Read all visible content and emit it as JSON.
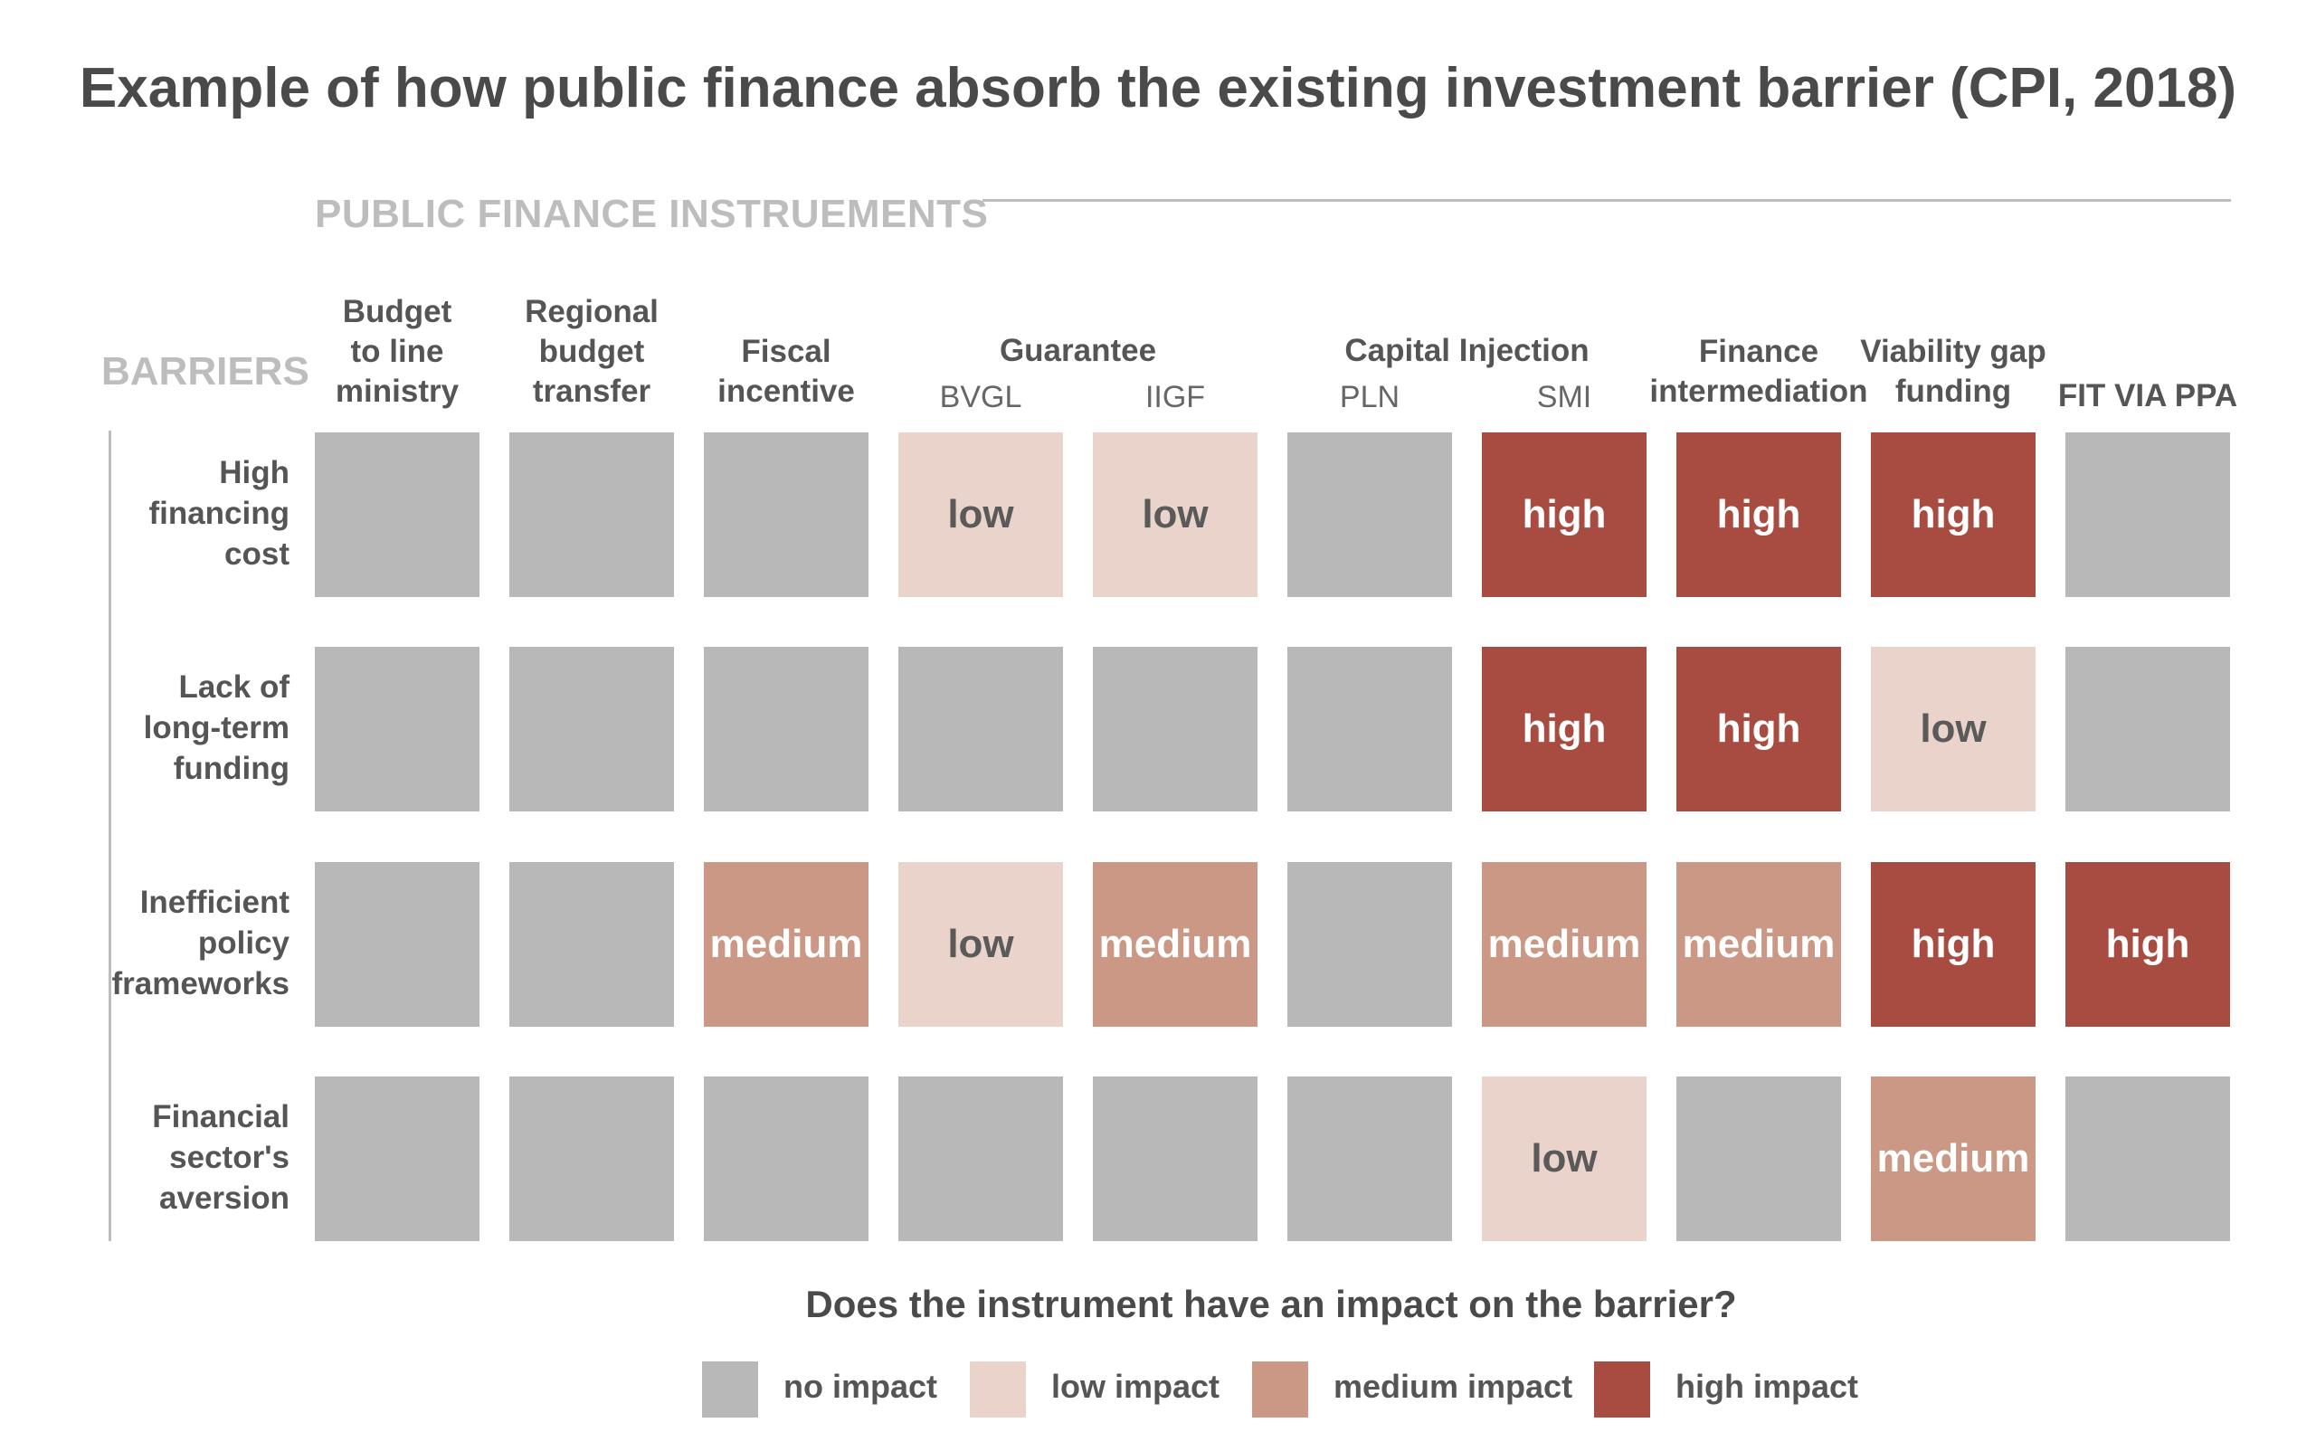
{
  "title": "Example of how public finance absorb the existing investment barrier (CPI, 2018)",
  "instruments_label": "PUBLIC FINANCE INSTRUEMENTS",
  "barriers_label": "BARRIERS",
  "question": "Does the instrument have an impact on the barrier?",
  "colors": {
    "none": "#b8b8b8",
    "low": "#ead3cb",
    "medium": "#cc9886",
    "high": "#a84c42",
    "text_dark": "#5a5a5a",
    "text_light": "#ffffff"
  },
  "groups": [
    {
      "label": "Budget\nto line\nministry",
      "cols": [
        0
      ]
    },
    {
      "label": "Regional\nbudget\ntransfer",
      "cols": [
        1
      ]
    },
    {
      "label": "Fiscal\nincentive",
      "cols": [
        2
      ]
    },
    {
      "label": "Guarantee",
      "cols": [
        3,
        4
      ]
    },
    {
      "label": "Capital Injection",
      "cols": [
        5,
        6
      ]
    },
    {
      "label": "Finance\nintermediation",
      "cols": [
        7
      ]
    },
    {
      "label": "Viability gap\nfunding",
      "cols": [
        8
      ]
    },
    {
      "label": "FIT VIA PPA",
      "cols": [
        9
      ]
    }
  ],
  "subcolumns": [
    "",
    "",
    "",
    "BVGL",
    "IIGF",
    "PLN",
    "SMI",
    "",
    "",
    ""
  ],
  "chart_data": {
    "type": "heatmap",
    "rows": [
      "High\nfinancing\ncost",
      "Lack of\nlong-term\nfunding",
      "Inefficient\npolicy\nframeworks",
      "Financial\nsector's\naversion"
    ],
    "columns": [
      "Budget to line ministry",
      "Regional budget transfer",
      "Fiscal incentive",
      "BVGL",
      "IIGF",
      "PLN",
      "SMI",
      "Finance intermediation",
      "Viability gap funding",
      "FIT VIA PPA"
    ],
    "values": [
      [
        "",
        "",
        "",
        "low",
        "low",
        "",
        "high",
        "high",
        "high",
        ""
      ],
      [
        "",
        "",
        "",
        "",
        "",
        "",
        "high",
        "high",
        "low",
        ""
      ],
      [
        "",
        "",
        "medium",
        "low",
        "medium",
        "",
        "medium",
        "medium",
        "high",
        "high"
      ],
      [
        "",
        "",
        "",
        "",
        "",
        "",
        "low",
        "",
        "medium",
        ""
      ]
    ],
    "levels": [
      "none",
      "low",
      "medium",
      "high"
    ],
    "legend": [
      {
        "level": "none",
        "label": "no impact"
      },
      {
        "level": "low",
        "label": "low impact"
      },
      {
        "level": "medium",
        "label": "medium impact"
      },
      {
        "level": "high",
        "label": "high impact"
      }
    ]
  }
}
